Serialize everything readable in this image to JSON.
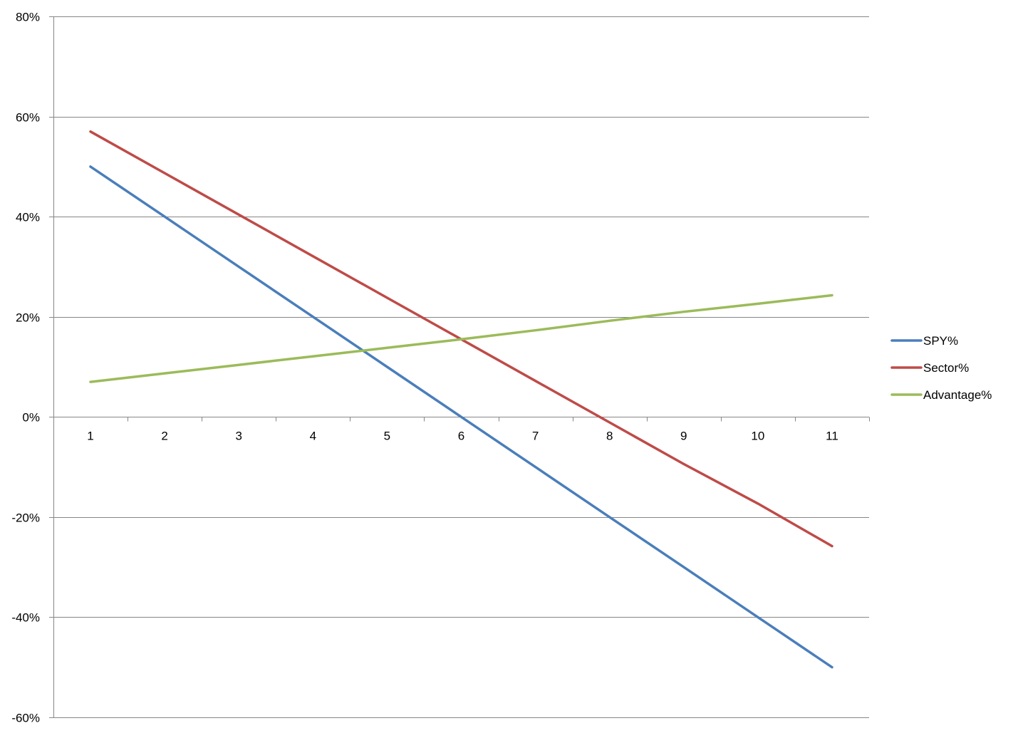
{
  "chart_data": {
    "type": "line",
    "title": "",
    "xlabel": "",
    "ylabel": "",
    "x": [
      1,
      2,
      3,
      4,
      5,
      6,
      7,
      8,
      9,
      10,
      11
    ],
    "x_tick_labels": [
      "1",
      "2",
      "3",
      "4",
      "5",
      "6",
      "7",
      "8",
      "9",
      "10",
      "11"
    ],
    "y_tick_values": [
      80,
      60,
      40,
      20,
      0,
      -20,
      -40,
      -60
    ],
    "y_tick_labels": [
      "80%",
      "60%",
      "40%",
      "20%",
      "0%",
      "-20%",
      "-40%",
      "-60%"
    ],
    "ylim": [
      -60,
      80
    ],
    "y_unit": "%",
    "grid": "horizontal major gridlines",
    "legend_position": "right",
    "series": [
      {
        "name": "SPY%",
        "color": "#4A7EBB",
        "values": [
          50,
          40,
          30,
          20,
          10,
          0,
          -10,
          -20,
          -30,
          -40,
          -50
        ]
      },
      {
        "name": "Sector%",
        "color": "#BE4B48",
        "values": [
          57,
          48.7,
          40.4,
          32.1,
          23.8,
          15.5,
          7.2,
          -1.1,
          -9.4,
          -17.3,
          -25.8
        ]
      },
      {
        "name": "Advantage%",
        "color": "#9BBB59",
        "values": [
          7,
          8.7,
          10.4,
          12.1,
          13.8,
          15.5,
          17.3,
          19.2,
          21,
          22.6,
          24.3
        ]
      }
    ]
  }
}
